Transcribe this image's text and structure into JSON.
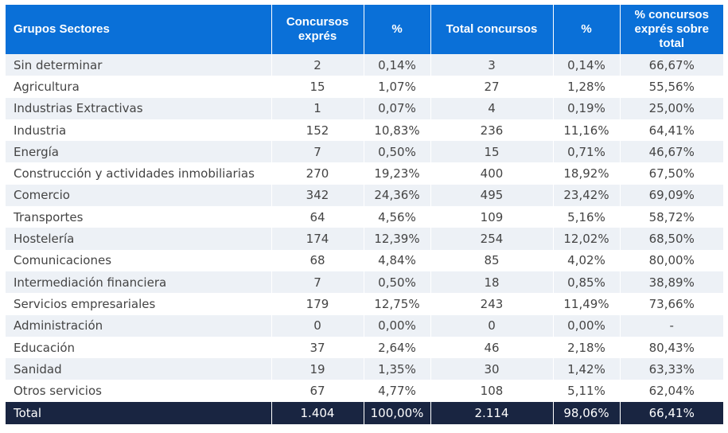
{
  "headers": [
    "Grupos Sectores",
    "Concursos exprés",
    "%",
    "Total concursos",
    "%",
    "% concursos exprés sobre total"
  ],
  "rows": [
    [
      "Sin determinar",
      "2",
      "0,14%",
      "3",
      "0,14%",
      "66,67%"
    ],
    [
      "Agricultura",
      "15",
      "1,07%",
      "27",
      "1,28%",
      "55,56%"
    ],
    [
      "Industrias Extractivas",
      "1",
      "0,07%",
      "4",
      "0,19%",
      "25,00%"
    ],
    [
      "Industria",
      "152",
      "10,83%",
      "236",
      "11,16%",
      "64,41%"
    ],
    [
      "Energía",
      "7",
      "0,50%",
      "15",
      "0,71%",
      "46,67%"
    ],
    [
      "Construcción y actividades inmobiliarias",
      "270",
      "19,23%",
      "400",
      "18,92%",
      "67,50%"
    ],
    [
      "Comercio",
      "342",
      "24,36%",
      "495",
      "23,42%",
      "69,09%"
    ],
    [
      "Transportes",
      "64",
      "4,56%",
      "109",
      "5,16%",
      "58,72%"
    ],
    [
      "Hostelería",
      "174",
      "12,39%",
      "254",
      "12,02%",
      "68,50%"
    ],
    [
      "Comunicaciones",
      "68",
      "4,84%",
      "85",
      "4,02%",
      "80,00%"
    ],
    [
      "Intermediación financiera",
      "7",
      "0,50%",
      "18",
      "0,85%",
      "38,89%"
    ],
    [
      "Servicios empresariales",
      "179",
      "12,75%",
      "243",
      "11,49%",
      "73,66%"
    ],
    [
      "Administración",
      "0",
      "0,00%",
      "0",
      "0,00%",
      "-"
    ],
    [
      "Educación",
      "37",
      "2,64%",
      "46",
      "2,18%",
      "80,43%"
    ],
    [
      "Sanidad",
      "19",
      "1,35%",
      "30",
      "1,42%",
      "63,33%"
    ],
    [
      "Otros servicios",
      "67",
      "4,77%",
      "108",
      "5,11%",
      "62,04%"
    ]
  ],
  "total": [
    "Total",
    "1.404",
    "100,00%",
    "2.114",
    "98,06%",
    "66,41%"
  ]
}
